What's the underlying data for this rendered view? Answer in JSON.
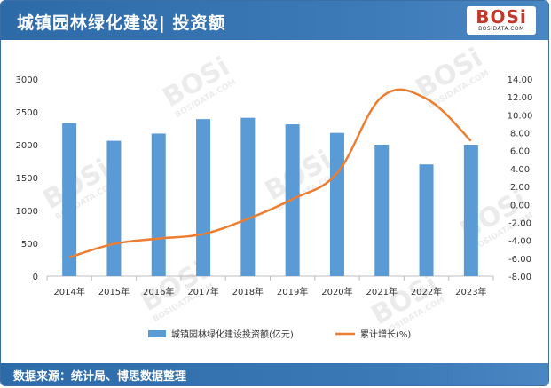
{
  "header": {
    "title": "城镇园林绿化建设| 投资额",
    "logo_main": "BOSi",
    "logo_sub": "BOSIDATA.COM"
  },
  "footer": {
    "source": "数据来源：统计局、博思数据整理"
  },
  "colors": {
    "bar": "#5b9bd5",
    "line": "#ed7d31",
    "header": "#2d6aa8"
  },
  "chart_data": {
    "type": "bar",
    "title": "",
    "categories": [
      "2014年",
      "2015年",
      "2016年",
      "2017年",
      "2018年",
      "2019年",
      "2020年",
      "2021年",
      "2022年",
      "2023年"
    ],
    "series": [
      {
        "name": "城镇园林绿化建设投资额(亿元)",
        "type": "bar",
        "axis": "left",
        "values": [
          2330,
          2060,
          2170,
          2390,
          2410,
          2310,
          2180,
          2000,
          1700,
          2000
        ]
      },
      {
        "name": "累计增长(%)",
        "type": "line",
        "axis": "right",
        "values": [
          -5.9,
          -4.4,
          -3.8,
          -3.3,
          -1.6,
          0.6,
          3.5,
          12.0,
          11.8,
          7.1
        ]
      }
    ],
    "y_left": {
      "min": 0,
      "max": 3000,
      "step": 500,
      "ticks": [
        "0",
        "500",
        "1000",
        "1500",
        "2000",
        "2500",
        "3000"
      ]
    },
    "y_right": {
      "min": -8,
      "max": 14,
      "step": 2,
      "ticks": [
        "-8.00",
        "-6.00",
        "-4.00",
        "-2.00",
        "0.00",
        "2.00",
        "4.00",
        "6.00",
        "8.00",
        "10.00",
        "12.00",
        "14.00"
      ]
    },
    "grid": false,
    "legend_position": "bottom"
  }
}
